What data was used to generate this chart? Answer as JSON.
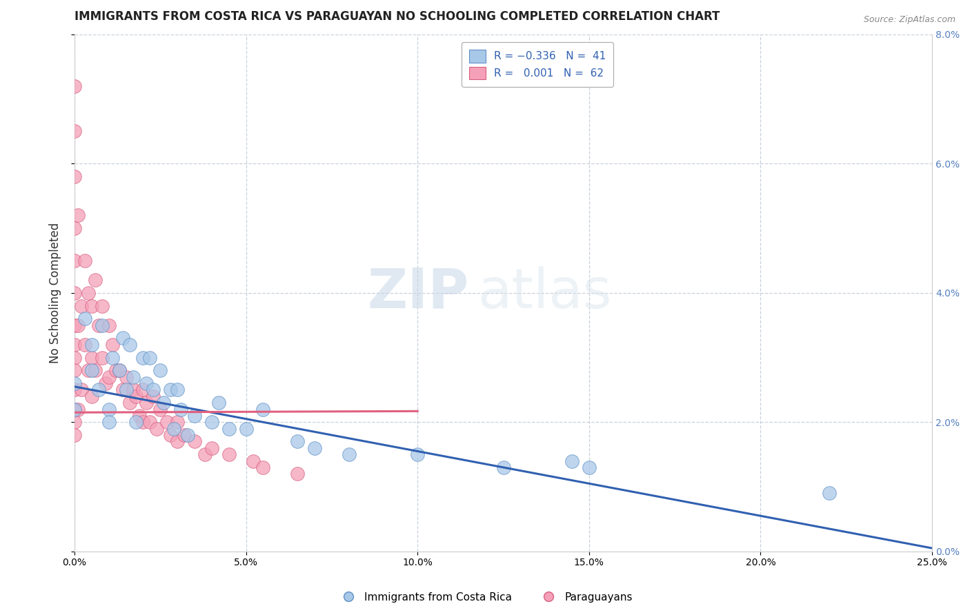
{
  "title": "IMMIGRANTS FROM COSTA RICA VS PARAGUAYAN NO SCHOOLING COMPLETED CORRELATION CHART",
  "source": "Source: ZipAtlas.com",
  "xlabel_values": [
    0.0,
    5.0,
    10.0,
    15.0,
    20.0,
    25.0
  ],
  "ylabel_values": [
    0.0,
    2.0,
    4.0,
    6.0,
    8.0
  ],
  "legend_labels": [
    "Immigrants from Costa Rica",
    "Paraguayans"
  ],
  "color_blue": "#a8c8e8",
  "color_pink": "#f4a0b8",
  "color_blue_edge": "#6090c8",
  "color_pink_edge": "#d86080",
  "color_blue_line": "#3060b0",
  "color_pink_line": "#e06080",
  "color_dashed": "#c8d0dc",
  "background_color": "#ffffff",
  "watermark_zip": "ZIP",
  "watermark_atlas": "atlas",
  "blue_points_x": [
    0.0,
    0.0,
    0.3,
    0.5,
    0.5,
    0.7,
    0.8,
    1.0,
    1.0,
    1.1,
    1.3,
    1.4,
    1.5,
    1.6,
    1.7,
    1.8,
    2.0,
    2.1,
    2.2,
    2.3,
    2.5,
    2.6,
    2.8,
    2.9,
    3.0,
    3.1,
    3.3,
    3.5,
    4.0,
    4.2,
    4.5,
    5.0,
    5.5,
    6.5,
    7.0,
    8.0,
    10.0,
    12.5,
    14.5,
    15.0,
    22.0
  ],
  "blue_points_y": [
    2.6,
    2.2,
    3.6,
    3.2,
    2.8,
    2.5,
    3.5,
    2.2,
    2.0,
    3.0,
    2.8,
    3.3,
    2.5,
    3.2,
    2.7,
    2.0,
    3.0,
    2.6,
    3.0,
    2.5,
    2.8,
    2.3,
    2.5,
    1.9,
    2.5,
    2.2,
    1.8,
    2.1,
    2.0,
    2.3,
    1.9,
    1.9,
    2.2,
    1.7,
    1.6,
    1.5,
    1.5,
    1.3,
    1.4,
    1.3,
    0.9
  ],
  "pink_points_x": [
    0.0,
    0.0,
    0.0,
    0.0,
    0.0,
    0.0,
    0.0,
    0.0,
    0.0,
    0.0,
    0.0,
    0.0,
    0.0,
    0.0,
    0.1,
    0.1,
    0.1,
    0.2,
    0.2,
    0.3,
    0.3,
    0.4,
    0.4,
    0.5,
    0.5,
    0.5,
    0.6,
    0.6,
    0.7,
    0.8,
    0.8,
    0.9,
    1.0,
    1.0,
    1.1,
    1.2,
    1.3,
    1.4,
    1.5,
    1.6,
    1.7,
    1.8,
    1.9,
    2.0,
    2.0,
    2.1,
    2.2,
    2.3,
    2.4,
    2.5,
    2.7,
    2.8,
    3.0,
    3.0,
    3.2,
    3.5,
    3.8,
    4.0,
    4.5,
    5.2,
    5.5,
    6.5
  ],
  "pink_points_y": [
    7.2,
    6.5,
    5.8,
    5.0,
    4.5,
    4.0,
    3.5,
    3.2,
    3.0,
    2.8,
    2.5,
    2.2,
    2.0,
    1.8,
    5.2,
    3.5,
    2.2,
    3.8,
    2.5,
    4.5,
    3.2,
    4.0,
    2.8,
    3.8,
    3.0,
    2.4,
    4.2,
    2.8,
    3.5,
    3.8,
    3.0,
    2.6,
    3.5,
    2.7,
    3.2,
    2.8,
    2.8,
    2.5,
    2.7,
    2.3,
    2.5,
    2.4,
    2.1,
    2.5,
    2.0,
    2.3,
    2.0,
    2.4,
    1.9,
    2.2,
    2.0,
    1.8,
    2.0,
    1.7,
    1.8,
    1.7,
    1.5,
    1.6,
    1.5,
    1.4,
    1.3,
    1.2
  ],
  "xlim": [
    0.0,
    25.0
  ],
  "ylim": [
    0.0,
    8.0
  ],
  "title_fontsize": 12,
  "tick_fontsize": 10,
  "ylabel_fontsize": 12,
  "blue_line_x0": 0.0,
  "blue_line_y0": 2.55,
  "blue_line_x1": 25.0,
  "blue_line_y1": 0.05,
  "pink_line_x0": 0.0,
  "pink_line_y0": 2.15,
  "pink_line_x1": 10.0,
  "pink_line_y1": 2.17
}
